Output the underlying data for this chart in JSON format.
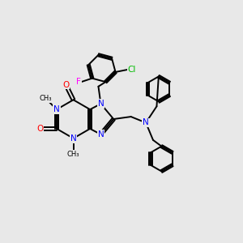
{
  "bg_color": "#e8e8e8",
  "bond_color": "#000000",
  "N_color": "#0000ff",
  "O_color": "#ff0000",
  "F_color": "#ff00ff",
  "Cl_color": "#00bb00",
  "figsize": [
    3.0,
    3.0
  ],
  "dpi": 100,
  "xlim": [
    0,
    10
  ],
  "ylim": [
    0,
    10
  ]
}
